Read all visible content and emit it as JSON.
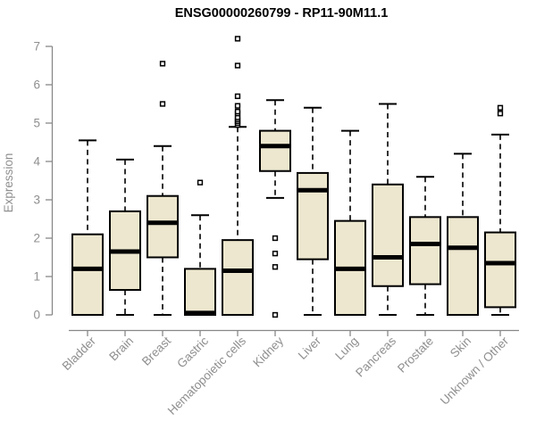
{
  "colors": {
    "box_fill": "#EDE7CF",
    "box_stroke": "#000000",
    "median_color": "#000000",
    "whisker_color": "#000000",
    "axis_color": "#888888",
    "tick_label_color": "#8f8f8f",
    "title_color": "#000000"
  },
  "chart_data": {
    "type": "boxplot",
    "title": "ENSG00000260799 - RP11-90M11.1",
    "xlabel": "",
    "ylabel": "Expression",
    "ylim": [
      0,
      7
    ],
    "yticks": [
      0,
      1,
      2,
      3,
      4,
      5,
      6,
      7
    ],
    "grid": false,
    "legend": "none",
    "categories": [
      "Bladder",
      "Brain",
      "Breast",
      "Gastric",
      "Hematopoietic cells",
      "Kidney",
      "Liver",
      "Lung",
      "Pancreas",
      "Prostate",
      "Skin",
      "Unknown / Other"
    ],
    "series": [
      {
        "name": "Bladder",
        "min": 0,
        "q1": 0,
        "median": 1.2,
        "q3": 2.1,
        "max": 4.55,
        "outliers": []
      },
      {
        "name": "Brain",
        "min": 0,
        "q1": 0.65,
        "median": 1.65,
        "q3": 2.7,
        "max": 4.05,
        "outliers": []
      },
      {
        "name": "Breast",
        "min": 0,
        "q1": 1.5,
        "median": 2.4,
        "q3": 3.1,
        "max": 4.4,
        "outliers": [
          5.5,
          6.55
        ]
      },
      {
        "name": "Gastric",
        "min": 0,
        "q1": 0,
        "median": 0.05,
        "q3": 1.2,
        "max": 2.6,
        "outliers": [
          3.45
        ]
      },
      {
        "name": "Hematopoietic cells",
        "min": 0,
        "q1": 0,
        "median": 1.15,
        "q3": 1.95,
        "max": 4.9,
        "outliers": [
          4.95,
          5.0,
          5.05,
          5.1,
          5.15,
          5.25,
          5.3,
          5.45,
          5.7,
          6.5,
          7.2
        ]
      },
      {
        "name": "Kidney",
        "min": 3.05,
        "q1": 3.75,
        "median": 4.4,
        "q3": 4.8,
        "max": 5.6,
        "outliers": [
          2.0,
          1.6,
          1.25,
          0
        ]
      },
      {
        "name": "Liver",
        "min": 0,
        "q1": 1.45,
        "median": 3.25,
        "q3": 3.7,
        "max": 5.4,
        "outliers": []
      },
      {
        "name": "Lung",
        "min": 0,
        "q1": 0,
        "median": 1.2,
        "q3": 2.45,
        "max": 4.8,
        "outliers": []
      },
      {
        "name": "Pancreas",
        "min": 0,
        "q1": 0.75,
        "median": 1.5,
        "q3": 3.4,
        "max": 5.5,
        "outliers": []
      },
      {
        "name": "Prostate",
        "min": 0,
        "q1": 0.8,
        "median": 1.85,
        "q3": 2.55,
        "max": 3.6,
        "outliers": []
      },
      {
        "name": "Skin",
        "min": 0,
        "q1": 0,
        "median": 1.75,
        "q3": 2.55,
        "max": 4.2,
        "outliers": []
      },
      {
        "name": "Unknown / Other",
        "min": 0,
        "q1": 0.2,
        "median": 1.35,
        "q3": 2.15,
        "max": 4.7,
        "outliers": [
          5.25,
          5.4
        ]
      }
    ]
  }
}
